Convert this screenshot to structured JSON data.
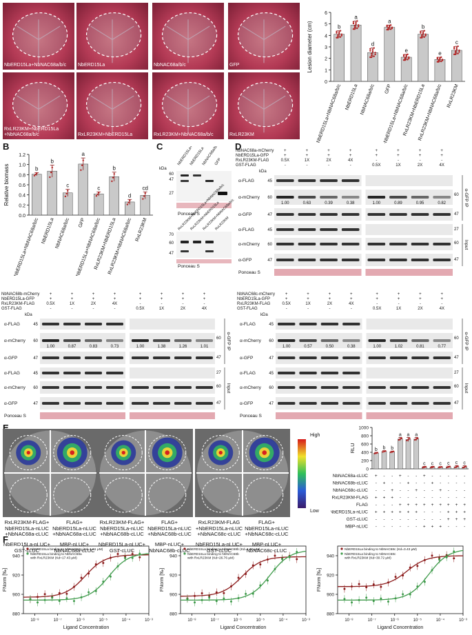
{
  "panels": {
    "A": "A",
    "B": "B",
    "C": "C",
    "D": "D",
    "E": "E",
    "F": "F"
  },
  "panelA": {
    "leaves": [
      "NbERD15La+NbNAC68a/b/c",
      "NbERD15La",
      "NbNAC68a/b/c",
      "GFP",
      "RxLR23KM+NbERD15La\n+NbNAC68a/b/c",
      "RxLR23KM+NbERD15La",
      "RxLR23KM+NbNAC68a/b/c",
      "RxLR23KM"
    ]
  },
  "chartA": {
    "type": "bar",
    "ylabel": "Lesion diameter (cm)",
    "yticks": [
      "0",
      "1",
      "2",
      "3",
      "4",
      "5",
      "6"
    ],
    "ylim": [
      0,
      6
    ],
    "categories": [
      "NbERD15La+NbNAC68a/b/c",
      "NbERD15La",
      "NbNAC68a/b/c",
      "GFP",
      "RxLR23KM+NbERD15La+NbNAC68a/b/c",
      "RxLR23KM+NbERD15La",
      "RxLR23KM+NbNAC68a/b/c",
      "RxLR23KM"
    ],
    "values": [
      4.1,
      4.9,
      2.5,
      4.7,
      2.1,
      4.1,
      1.9,
      2.7
    ],
    "errors": [
      0.3,
      0.35,
      0.4,
      0.2,
      0.25,
      0.3,
      0.2,
      0.35
    ],
    "letters": [
      "b",
      "a",
      "d",
      "a",
      "e",
      "b",
      "e",
      "c"
    ]
  },
  "chartB": {
    "type": "bar",
    "ylabel": "Relative biomass",
    "yticks": [
      "0.0",
      "0.2",
      "0.4",
      "0.6",
      "0.8",
      "1.0",
      "1.2"
    ],
    "ylim": [
      0,
      1.2
    ],
    "categories": [
      "NbERD15La+NbNAC68a/b/c",
      "NbERD15La",
      "NbNAC68a/b/c",
      "GFP",
      "RxLR23KM+NbERD15La+NbNAC68a/b/c",
      "RxLR23KM+NbERD15La",
      "RxLR23KM+NbNAC68a/b/c",
      "RxLR23KM"
    ],
    "values": [
      0.81,
      0.87,
      0.44,
      1.01,
      0.42,
      0.76,
      0.26,
      0.39
    ],
    "errors": [
      0.03,
      0.12,
      0.07,
      0.12,
      0.04,
      0.09,
      0.05,
      0.07
    ],
    "letters": [
      "b",
      "b",
      "c",
      "a",
      "c",
      "b",
      "d",
      "cd"
    ]
  },
  "panelC": {
    "kda": "kDa",
    "top_lanes": [
      "NbERD15La+NbNAC68a/b/c",
      "NbERD15La",
      "NbNAC68a/b/c",
      "GFP"
    ],
    "bottom_lanes": [
      "RxLR23KM+NbERD15La+NbNAC68a/b/c",
      "RxLR23KM+NbERD15La",
      "RxLR23KM+NbNAC68a/b/c",
      "RxLR23KM"
    ],
    "top_markers": [
      "60",
      "47",
      "27"
    ],
    "bottom_markers": [
      "70",
      "60",
      "47"
    ],
    "ponceau": "Ponceau S"
  },
  "panelD": {
    "kda": "kDa",
    "ponceau": "Ponceau S",
    "ip": "α-GFP IP",
    "input": "Input",
    "blot1": {
      "rows": [
        "NbNAC68a-mCherry",
        "NbERD15La-GFP",
        "RxLR23KM-FLAG",
        "GST-FLAG"
      ],
      "left_cells": [
        [
          "+",
          "+",
          "+",
          "+"
        ],
        [
          "+",
          "+",
          "+",
          "+"
        ],
        [
          "0.5X",
          "1X",
          "2X",
          "4X"
        ],
        [
          "-",
          "-",
          "-",
          "-"
        ]
      ],
      "right_cells": [
        [
          "+",
          "+",
          "+",
          "+"
        ],
        [
          "+",
          "+",
          "+",
          "+"
        ],
        [
          "-",
          "-",
          "-",
          "-"
        ],
        [
          "0.5X",
          "1X",
          "2X",
          "4X"
        ]
      ],
      "antibodies": [
        "α-FLAG",
        "α-mCherry",
        "α-GFP",
        "α-FLAG",
        "α-mCherry",
        "α-GFP"
      ],
      "markers_left": [
        "45",
        "60",
        "47",
        "45",
        "60",
        "47"
      ],
      "markers_right": [
        "60",
        "47",
        "27",
        "60",
        "47"
      ],
      "left_ratios": [
        "1.00",
        "0.63",
        "0.39",
        "0.38"
      ],
      "right_ratios": [
        "1.00",
        "0.89",
        "0.95",
        "0.82"
      ]
    },
    "blot2": {
      "rows": [
        "NbNAC68b-mCherry",
        "NbERD15La-GFP",
        "RxLR23KM-FLAG",
        "GST-FLAG"
      ],
      "left_cells": [
        [
          "+",
          "+",
          "+",
          "+"
        ],
        [
          "+",
          "+",
          "+",
          "+"
        ],
        [
          "0.5X",
          "1X",
          "2X",
          "4X"
        ],
        [
          "-",
          "-",
          "-",
          "-"
        ]
      ],
      "right_cells": [
        [
          "+",
          "+",
          "+",
          "+"
        ],
        [
          "+",
          "+",
          "+",
          "+"
        ],
        [
          "-",
          "-",
          "-",
          "-"
        ],
        [
          "0.5X",
          "1X",
          "2X",
          "4X"
        ]
      ],
      "antibodies": [
        "α-FLAG",
        "α-mCherry",
        "α-GFP",
        "α-FLAG",
        "α-mCherry",
        "α-GFP"
      ],
      "markers_left": [
        "45",
        "60",
        "47",
        "45",
        "60",
        "47"
      ],
      "markers_right": [
        "60",
        "47",
        "27",
        "60",
        "47"
      ],
      "left_ratios": [
        "1.00",
        "0.87",
        "0.83",
        "0.73"
      ],
      "right_ratios": [
        "1.00",
        "1.38",
        "1.26",
        "1.01"
      ]
    },
    "blot3": {
      "rows": [
        "NbNAC68c-mCherry",
        "NbERD15La-GFP",
        "RxLR23KM-FLAG",
        "GST-FLAG"
      ],
      "left_cells": [
        [
          "+",
          "+",
          "+",
          "+"
        ],
        [
          "+",
          "+",
          "+",
          "+"
        ],
        [
          "0.5X",
          "1X",
          "2X",
          "4X"
        ],
        [
          "-",
          "-",
          "-",
          "-"
        ]
      ],
      "right_cells": [
        [
          "+",
          "+",
          "+",
          "+"
        ],
        [
          "+",
          "+",
          "+",
          "+"
        ],
        [
          "-",
          "-",
          "-",
          "-"
        ],
        [
          "0.5X",
          "1X",
          "2X",
          "4X"
        ]
      ],
      "antibodies": [
        "α-FLAG",
        "α-mCherry",
        "α-GFP",
        "α-FLAG",
        "α-mCherry",
        "α-GFP"
      ],
      "markers_left": [
        "45",
        "60",
        "47",
        "45",
        "60",
        "47"
      ],
      "markers_right": [
        "60",
        "47",
        "27",
        "60",
        "47"
      ],
      "left_ratios": [
        "1.00",
        "0.57",
        "0.50",
        "0.38"
      ],
      "right_ratios": [
        "1.00",
        "1.02",
        "0.81",
        "0.77"
      ]
    }
  },
  "panelE": {
    "scale_high": "High",
    "scale_low": "Low",
    "captions_top": [
      "RxLR23KM-FLAG+\nNbERD15La-nLUC\n+NbNAC68a-cLUC",
      "FLAG+\nNbERD15La-nLUC\n+NbNAC68a-cLUC",
      "RxLR23KM-FLAG+\nNbERD15La-nLUC\n+NbNAC68b-cLUC",
      "FLAG+\nNbERD15La-nLUC\n+NbNAC68b-cLUC",
      "RxLR23KM-FLAG\n+NbERD15La-nLUC\n+NbNAC68c-cLUC",
      "FLAG+\nNbERD15La-nLUC\n+NbNAC68c-cLUC"
    ],
    "captions_bottom": [
      "NbERD15La-nLUC+\nGST-cLUC",
      "MBP-nLUC+\nNbNAC68a-cLUC",
      "NbERD15La-nLUC+\nGST-cLUC",
      "MBP-nLUC+\nNbNAC68b-cLUC",
      "NbERD15La-nLUC+\nGST-cLUC",
      "MBP-nLUC+\nNbNAC68c-cLUC"
    ]
  },
  "chartE": {
    "type": "bar",
    "ylabel": "RLU",
    "yticks": [
      "0",
      "200",
      "400",
      "600",
      "800",
      "1000"
    ],
    "ylim": [
      0,
      1000
    ],
    "values": [
      380,
      420,
      410,
      720,
      710,
      720,
      40,
      40,
      40,
      45,
      50,
      45
    ],
    "errors": [
      20,
      20,
      20,
      40,
      50,
      40,
      20,
      20,
      15,
      20,
      30,
      30
    ],
    "letters": [
      "b",
      "b",
      "b",
      "a",
      "a",
      "a",
      "c",
      "c",
      "c",
      "c",
      "c",
      "c"
    ],
    "row_labels": [
      "NbNAC68a-cLUC",
      "NbNAC68b-cLUC",
      "NbNAC68c-cLUC",
      "RxLR23KM-FLAG",
      "FLAG",
      "NbERD15La-nLUC",
      "GST-cLUC",
      "MBP-nLUC"
    ],
    "row_cells": [
      [
        "+",
        "-",
        "-",
        "+",
        "-",
        "-",
        "+",
        "-",
        "-",
        "-",
        "-",
        "-"
      ],
      [
        "-",
        "+",
        "-",
        "-",
        "+",
        "-",
        "-",
        "+",
        "-",
        "-",
        "-",
        "-"
      ],
      [
        "-",
        "-",
        "+",
        "-",
        "-",
        "+",
        "-",
        "-",
        "+",
        "-",
        "-",
        "-"
      ],
      [
        "+",
        "+",
        "+",
        "-",
        "-",
        "-",
        "-",
        "-",
        "-",
        "-",
        "-",
        "-"
      ],
      [
        "-",
        "-",
        "-",
        "+",
        "+",
        "+",
        "+",
        "+",
        "+",
        "+",
        "+",
        "+"
      ],
      [
        "+",
        "+",
        "+",
        "+",
        "+",
        "+",
        "-",
        "-",
        "-",
        "+",
        "+",
        "+"
      ],
      [
        "-",
        "-",
        "-",
        "-",
        "-",
        "-",
        "-",
        "-",
        "-",
        "+",
        "+",
        "+"
      ],
      [
        "-",
        "-",
        "-",
        "-",
        "-",
        "-",
        "+",
        "+",
        "+",
        "-",
        "-",
        "-"
      ]
    ]
  },
  "chartF": [
    {
      "type": "scatter",
      "ylabel": "FNorm [‰]",
      "xlabel": "Ligand Concentration",
      "yticks": [
        "880",
        "900",
        "920",
        "940"
      ],
      "ylim": [
        880,
        950
      ],
      "xticks": [
        "10⁻⁸",
        "10⁻⁷",
        "10⁻⁶",
        "10⁻⁵",
        "10⁻⁴",
        "10⁻³"
      ],
      "xlim": [
        -8.5,
        -3
      ],
      "legend": [
        "NbERD15La binding to NbNAC68a (Kd=1.61 μM)",
        "NbERD15La binding to NbNAC68a\nwith RxLR23KM (Kd=17.43 μM)"
      ],
      "series": [
        {
          "color": "#8b1a1a",
          "kd": -5.79,
          "low": 897,
          "high": 941
        },
        {
          "color": "#3e9a4a",
          "kd": -4.76,
          "low": 894,
          "high": 943
        }
      ]
    },
    {
      "type": "scatter",
      "ylabel": "FNorm [‰]",
      "xlabel": "Ligand Concentration",
      "yticks": [
        "880",
        "900",
        "920",
        "940"
      ],
      "ylim": [
        880,
        950
      ],
      "xticks": [
        "10⁻⁸",
        "10⁻⁷",
        "10⁻⁶",
        "10⁻⁵",
        "10⁻⁴",
        "10⁻³"
      ],
      "xlim": [
        -8.5,
        -3
      ],
      "legend": [
        "NbERD15La binding to NbNAC68b (Kd=1.60 μM)",
        "NbERD15La binding to NbNAC68b\nwith RxLR23KM (Kd=26.76 μM)"
      ],
      "series": [
        {
          "color": "#8b1a1a",
          "kd": -5.8,
          "low": 898,
          "high": 939
        },
        {
          "color": "#3e9a4a",
          "kd": -4.57,
          "low": 894,
          "high": 946
        }
      ]
    },
    {
      "type": "scatter",
      "ylabel": "FNorm [‰]",
      "xlabel": "Ligand Concentration",
      "yticks": [
        "880",
        "900",
        "920",
        "940"
      ],
      "ylim": [
        880,
        950
      ],
      "xticks": [
        "10⁻⁸",
        "10⁻⁷",
        "10⁻⁶",
        "10⁻⁵",
        "10⁻⁴",
        "10⁻³"
      ],
      "xlim": [
        -8.5,
        -3
      ],
      "legend": [
        "NbERD15La binding to NbNAC68c (Kd=3.43 μM)",
        "NbERD15La binding to NbNAC68c\nwith RxLR23KM (Kd=30.72 μM)"
      ],
      "series": [
        {
          "color": "#8b1a1a",
          "kd": -5.46,
          "low": 908,
          "high": 940
        },
        {
          "color": "#3e9a4a",
          "kd": -4.51,
          "low": 894,
          "high": 947
        }
      ]
    }
  ]
}
